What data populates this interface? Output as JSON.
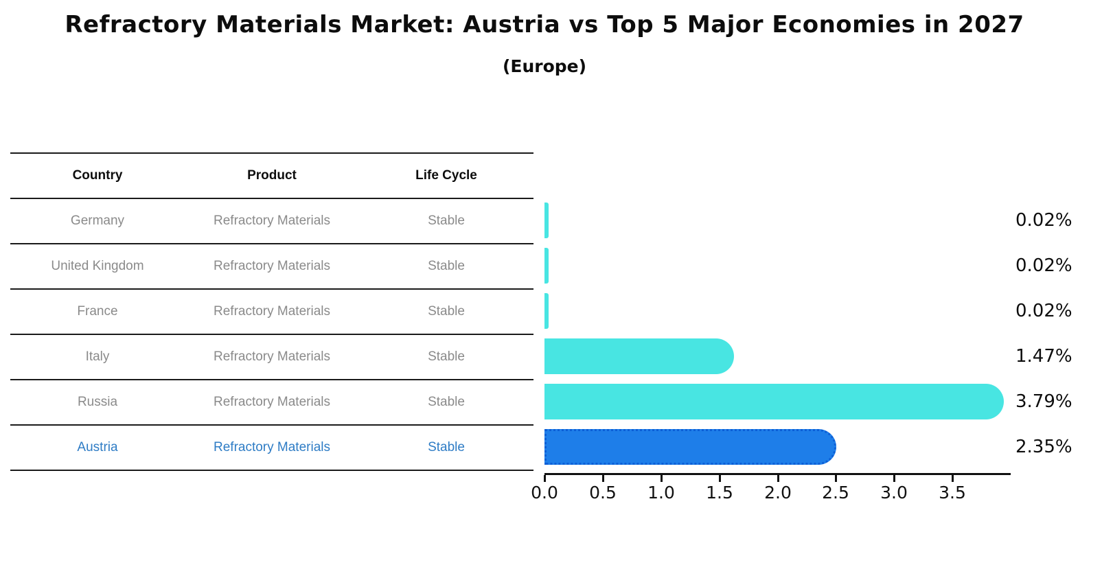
{
  "title": "Refractory Materials Market: Austria vs Top 5 Major Economies in 2027",
  "subtitle": "(Europe)",
  "table": {
    "headers": [
      "Country",
      "Product",
      "Life Cycle"
    ],
    "rows": [
      {
        "country": "Germany",
        "product": "Refractory Materials",
        "life_cycle": "Stable",
        "highlight": false
      },
      {
        "country": "United Kingdom",
        "product": "Refractory Materials",
        "life_cycle": "Stable",
        "highlight": false
      },
      {
        "country": "France",
        "product": "Refractory Materials",
        "life_cycle": "Stable",
        "highlight": false
      },
      {
        "country": "Italy",
        "product": "Refractory Materials",
        "life_cycle": "Stable",
        "highlight": false
      },
      {
        "country": "Russia",
        "product": "Refractory Materials",
        "life_cycle": "Stable",
        "highlight": false
      },
      {
        "country": "Austria",
        "product": "Refractory Materials",
        "life_cycle": "Stable",
        "highlight": true
      }
    ]
  },
  "chart_data": {
    "type": "bar",
    "orientation": "horizontal",
    "title": "Refractory Materials Market: Austria vs Top 5 Major Economies in 2027",
    "subtitle": "(Europe)",
    "categories": [
      "Germany",
      "United Kingdom",
      "France",
      "Italy",
      "Russia",
      "Austria"
    ],
    "values": [
      0.02,
      0.02,
      0.02,
      1.47,
      3.79,
      2.35
    ],
    "value_labels": [
      "0.02%",
      "0.02%",
      "0.02%",
      "1.47%",
      "3.79%",
      "2.35%"
    ],
    "x_ticks": [
      "0.0",
      "0.5",
      "1.0",
      "1.5",
      "2.0",
      "2.5",
      "3.0",
      "3.5"
    ],
    "xlim": [
      0,
      4.0
    ],
    "xlabel": "",
    "ylabel": "",
    "grid": false,
    "legend": "none",
    "bar_color": "#48E5E2",
    "highlight_color": "#1E7EE9",
    "highlight_index": 5,
    "highlight_text_color": "#2e7cc5"
  }
}
